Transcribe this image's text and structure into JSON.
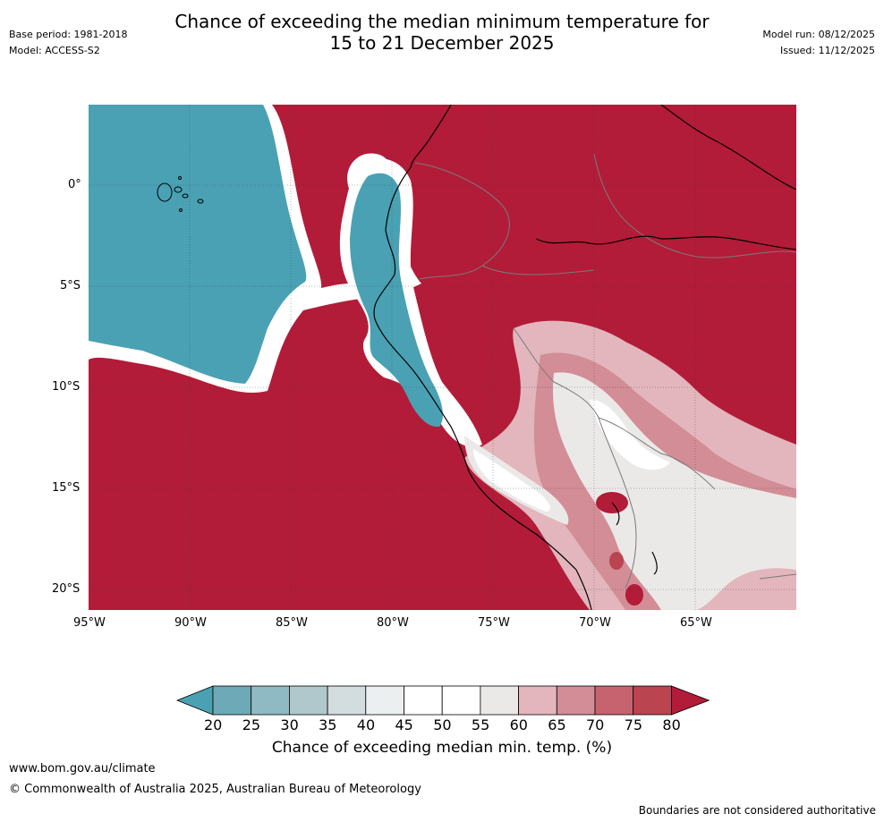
{
  "title": {
    "line1": "Chance of exceeding the median minimum temperature for",
    "line2": "15 to 21 December 2025"
  },
  "meta_left": {
    "base_period": "Base period: 1981-2018",
    "model": "Model: ACCESS-S2"
  },
  "meta_right": {
    "model_run": "Model run: 08/12/2025",
    "issued": "Issued: 11/12/2025"
  },
  "map": {
    "lat_labels": [
      "0°",
      "5°S",
      "10°S",
      "15°S",
      "20°S"
    ],
    "lon_labels": [
      "95°W",
      "90°W",
      "85°W",
      "80°W",
      "75°W",
      "70°W",
      "65°W"
    ]
  },
  "colorbar": {
    "ticks": [
      "20",
      "25",
      "30",
      "35",
      "40",
      "45",
      "50",
      "55",
      "60",
      "65",
      "70",
      "75",
      "80"
    ],
    "colors": [
      "#4aa1b4",
      "#6ea9b7",
      "#8fbac4",
      "#b0c8cc",
      "#d3dcde",
      "#eceff0",
      "#ffffff",
      "#ffffff",
      "#ebe9e8",
      "#e2b6bc",
      "#d38d96",
      "#c6636f",
      "#bb4451",
      "#b21c38"
    ],
    "label": "Chance of exceeding median min. temp. (%)"
  },
  "palette": {
    "ocean_low": "#4aa1b4",
    "land_high": "#b21c38",
    "mid_light": "#ebe9e8"
  },
  "footer": {
    "website": "www.bom.gov.au/climate",
    "copyright": "© Commonwealth of Australia 2025, Australian Bureau of Meteorology",
    "disclaimer": "Boundaries are not considered authoritative"
  }
}
